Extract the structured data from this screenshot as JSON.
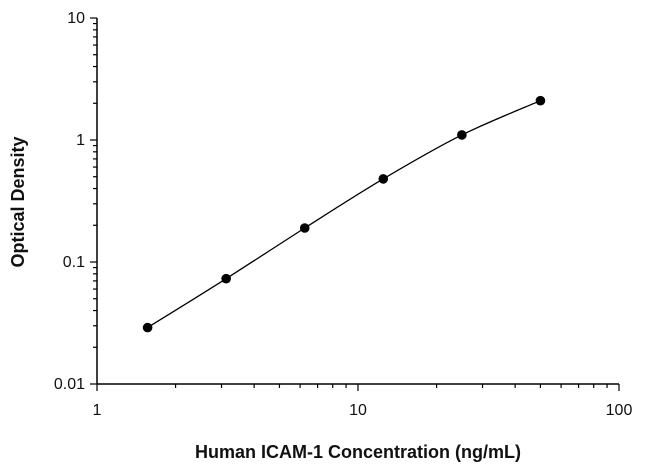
{
  "chart_data": {
    "type": "scatter",
    "xlabel": "Human ICAM-1 Concentration (ng/mL)",
    "ylabel": "Optical Density",
    "x_scale": "log",
    "y_scale": "log",
    "xlim": [
      1,
      100
    ],
    "ylim": [
      0.01,
      10
    ],
    "x_ticks": [
      "1",
      "10",
      "100"
    ],
    "y_ticks": [
      "0.01",
      "0.1",
      "1",
      "10"
    ],
    "grid": false,
    "legend": "none",
    "series": [
      {
        "x": [
          1.5625,
          3.125,
          6.25,
          12.5,
          25,
          50
        ],
        "y": [
          0.029,
          0.073,
          0.19,
          0.48,
          1.1,
          2.1
        ],
        "marker": "circle",
        "fit_line": true,
        "color": "#000000"
      }
    ]
  }
}
